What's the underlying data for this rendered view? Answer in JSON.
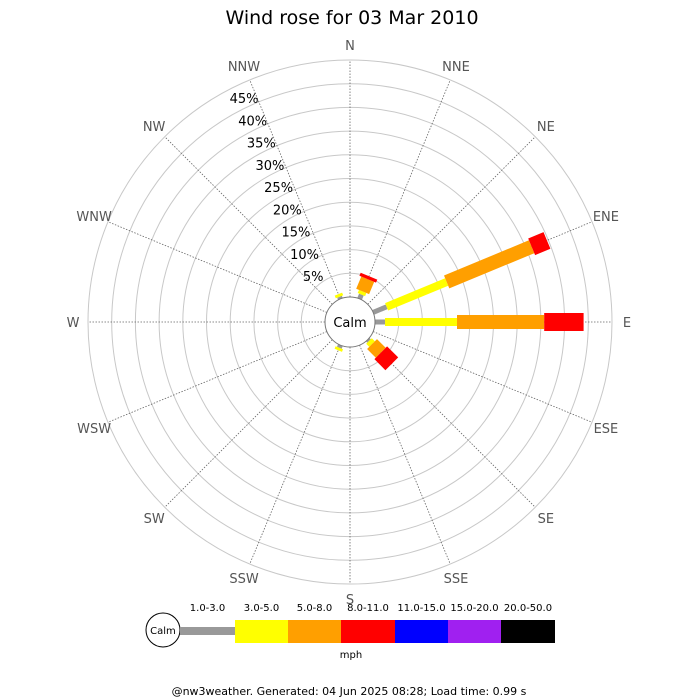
{
  "footer": "@nw3weather. Generated: 04 Jun 2025 08:28; Load time: 0.99 s",
  "chart_data": {
    "type": "wind-rose",
    "title": "Wind rose for 03 Mar 2010",
    "calm_label": "Calm",
    "unit": "mph",
    "radial_max_percent": 50,
    "radial_ticks": [
      "5%",
      "10%",
      "15%",
      "20%",
      "25%",
      "30%",
      "35%",
      "40%",
      "45%"
    ],
    "grid": true,
    "directions": [
      "N",
      "NNE",
      "NE",
      "ENE",
      "E",
      "ESE",
      "SE",
      "SSE",
      "S",
      "SSW",
      "SW",
      "WSW",
      "W",
      "WNW",
      "NW",
      "NNW"
    ],
    "speed_bins": [
      {
        "label": "1.0-3.0",
        "color": "#999999"
      },
      {
        "label": "3.0-5.0",
        "color": "#ffff00"
      },
      {
        "label": "5.0-8.0",
        "color": "#ff9f00"
      },
      {
        "label": "8.0-11.0",
        "color": "#ff0000"
      },
      {
        "label": "11.0-15.0",
        "color": "#0000ff"
      },
      {
        "label": "15.0-20.0",
        "color": "#a020f0"
      },
      {
        "label": "20.0-50.0",
        "color": "#000000"
      }
    ],
    "cumulative_percent": {
      "NNW": [
        0.5,
        1.1,
        1.1,
        1.1,
        1.1,
        1.1,
        1.1
      ],
      "N": [
        0,
        0,
        0,
        0,
        0,
        0,
        0
      ],
      "NNE": [
        1.0,
        1.7,
        4.5,
        5.2,
        5.2,
        5.2,
        5.2
      ],
      "NE": [
        0,
        0,
        0,
        0,
        0,
        0,
        0
      ],
      "ENE": [
        3.1,
        16.8,
        36.2,
        39.7,
        39.7,
        39.7,
        39.7
      ],
      "E": [
        2.1,
        17.3,
        35.7,
        44.0,
        44.0,
        44.0,
        44.0
      ],
      "ESE": [
        0,
        0,
        0,
        0,
        0,
        0,
        0
      ],
      "SE": [
        0.4,
        1.3,
        3.9,
        7.2,
        7.2,
        7.2,
        7.2
      ],
      "SSE": [
        0,
        0,
        0,
        0,
        0,
        0,
        0
      ],
      "S": [
        0,
        0,
        0,
        0,
        0,
        0,
        0
      ],
      "SSW": [
        0.6,
        1.2,
        1.2,
        1.2,
        1.2,
        1.2,
        1.2
      ],
      "SW": [
        0,
        0,
        0,
        0,
        0,
        0,
        0
      ],
      "WSW": [
        0,
        0,
        0,
        0,
        0,
        0,
        0
      ],
      "W": [
        0,
        0,
        0,
        0,
        0,
        0,
        0
      ],
      "WNW": [
        0,
        0,
        0,
        0,
        0,
        0,
        0
      ],
      "NW": [
        0,
        0,
        0,
        0,
        0,
        0,
        0
      ]
    }
  }
}
